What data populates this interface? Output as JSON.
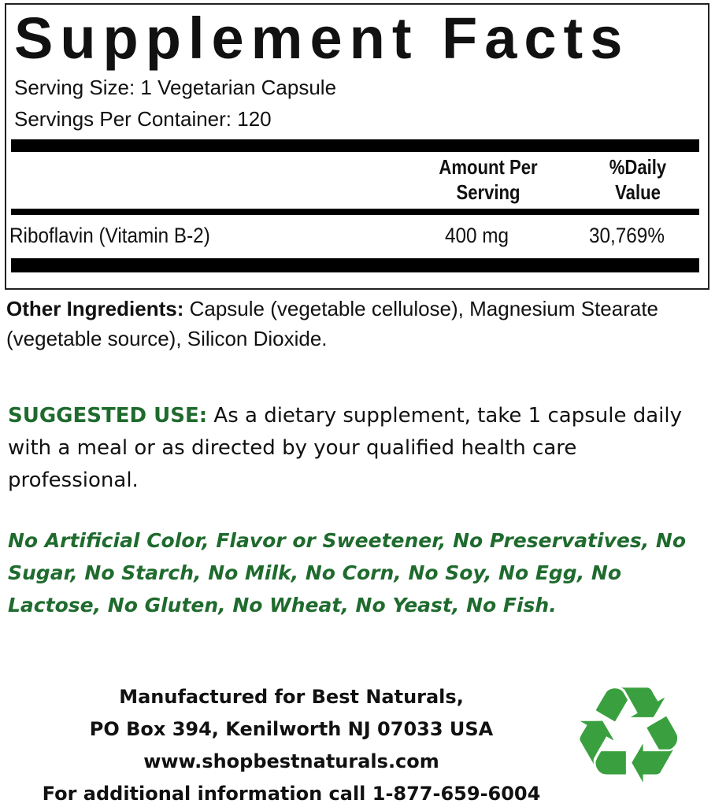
{
  "facts": {
    "title": "Supplement Facts",
    "serving_size": "Serving Size: 1 Vegetarian Capsule",
    "servings_per_container": "Servings Per Container: 120",
    "headers": {
      "amount_line1": "Amount Per",
      "amount_line2": "Serving",
      "dv_line1": "%Daily",
      "dv_line2": "Value"
    },
    "rows": [
      {
        "name": "Riboflavin (Vitamin B-2)",
        "amount": "400 mg",
        "dv": "30,769%"
      }
    ]
  },
  "other_ingredients": {
    "label": "Other Ingredients:",
    "text": " Capsule (vegetable cellulose), Magnesium Stearate (vegetable source), Silicon Dioxide."
  },
  "suggested_use": {
    "label": "SUGGESTED USE:",
    "text": " As a dietary supplement, take 1 capsule daily with a meal or as directed by your qualified health care professional."
  },
  "claims": "No Artificial Color, Flavor or Sweetener, No Preservatives, No Sugar, No Starch, No Milk, No Corn, No Soy, No Egg, No Lactose, No Gluten, No Wheat, No Yeast, No Fish.",
  "footer": {
    "line1": "Manufactured for Best Naturals,",
    "line2": "PO Box 394, Kenilworth NJ 07033 USA",
    "line3": "www.shopbestnaturals.com",
    "line4": "For additional information call 1-877-659-6004"
  },
  "colors": {
    "accent_green": "#1f6b2e",
    "recycle_green": "#3aa03f"
  },
  "icons": {
    "recycle": "recycle-icon"
  }
}
